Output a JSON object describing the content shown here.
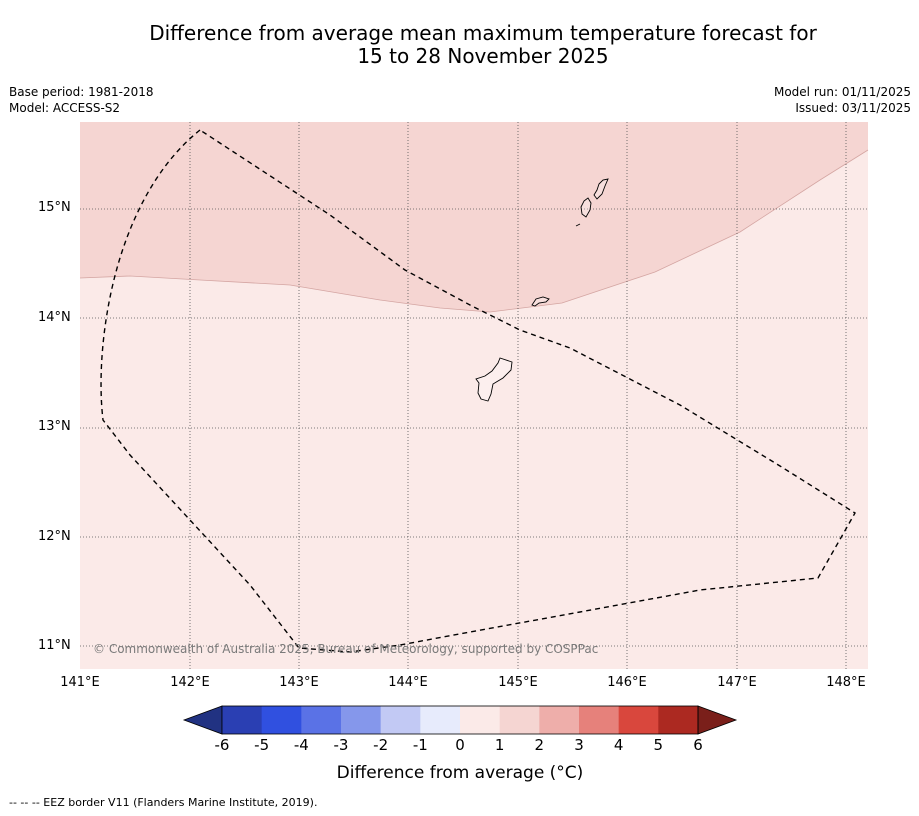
{
  "title": {
    "line1": "Difference from average mean maximum temperature forecast for",
    "line2": "15 to 28 November 2025"
  },
  "meta": {
    "base_period": "Base period: 1981-2018",
    "model": "Model: ACCESS-S2",
    "model_run": "Model run: 01/11/2025",
    "issued": "Issued: 03/11/2025"
  },
  "map": {
    "lat_labels": [
      "15°N",
      "14°N",
      "13°N",
      "12°N",
      "11°N"
    ],
    "lon_labels": [
      "141°E",
      "142°E",
      "143°E",
      "144°E",
      "145°E",
      "146°E",
      "147°E",
      "148°E"
    ],
    "copyright": "© Commonwealth of Australia 2025, Bureau of Meteorology, supported by COSPPac",
    "region_colors": {
      "plus_0_to_1": "#fbeae8",
      "plus_1_to_2": "#f5d5d2"
    }
  },
  "colorbar": {
    "ticks": [
      "-6",
      "-5",
      "-4",
      "-3",
      "-2",
      "-1",
      "0",
      "1",
      "2",
      "3",
      "4",
      "5",
      "6"
    ],
    "colors": [
      "#213282",
      "#2a3fb3",
      "#3050e0",
      "#5a72e6",
      "#8597eb",
      "#c2c9f4",
      "#e7ebfc",
      "#fbeae8",
      "#f5d5d2",
      "#eeaeaa",
      "#e6817b",
      "#d9473d",
      "#ac2921",
      "#7a1f1a"
    ],
    "label": "Difference from average ( $^\\circ$C)",
    "label_display": "Difference from average (°C)"
  },
  "footnote": "-- -- -- EEZ border V11 (Flanders Marine Institute, 2019)."
}
